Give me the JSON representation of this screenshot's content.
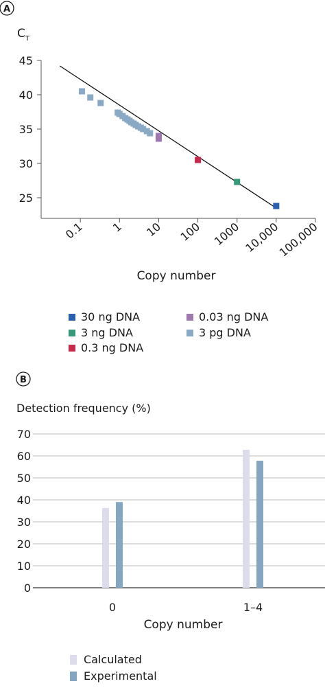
{
  "panels": {
    "a_label": "A",
    "b_label": "B"
  },
  "chart_data": [
    {
      "type": "scatter",
      "title": "",
      "ylabel_main": "C",
      "ylabel_sub": "T",
      "xlabel": "Copy number",
      "xscale": "log",
      "xlim": [
        0.01,
        100000
      ],
      "ylim": [
        22,
        45
      ],
      "yticks": [
        25,
        30,
        35,
        40,
        45
      ],
      "xticks": [
        {
          "value": 0.1,
          "label": "0.1"
        },
        {
          "value": 1,
          "label": "1"
        },
        {
          "value": 10,
          "label": "10"
        },
        {
          "value": 100,
          "label": "100"
        },
        {
          "value": 1000,
          "label": "1000"
        },
        {
          "value": 10000,
          "label": "10,000"
        },
        {
          "value": 100000,
          "label": "100,000"
        }
      ],
      "fit_line": {
        "x": [
          0.03,
          10000
        ],
        "y": [
          44.2,
          23.5
        ]
      },
      "series": [
        {
          "name": "30 ng DNA",
          "color": "#2a5fb0",
          "points": [
            {
              "x": 10000,
              "y": 23.8
            }
          ]
        },
        {
          "name": "3 ng DNA",
          "color": "#35997a",
          "points": [
            {
              "x": 1000,
              "y": 27.3
            }
          ]
        },
        {
          "name": "0.3 ng DNA",
          "color": "#c8284a",
          "points": [
            {
              "x": 100,
              "y": 30.5
            }
          ]
        },
        {
          "name": "0.03 ng DNA",
          "color": "#9e79b0",
          "points": [
            {
              "x": 10,
              "y": 34.0
            },
            {
              "x": 10,
              "y": 33.6
            }
          ]
        },
        {
          "name": "3 pg DNA",
          "color": "#8aa9c4",
          "points": [
            {
              "x": 0.11,
              "y": 40.5
            },
            {
              "x": 0.18,
              "y": 39.6
            },
            {
              "x": 0.33,
              "y": 38.8
            },
            {
              "x": 0.9,
              "y": 37.4
            },
            {
              "x": 1.0,
              "y": 37.2
            },
            {
              "x": 1.2,
              "y": 36.9
            },
            {
              "x": 1.4,
              "y": 36.6
            },
            {
              "x": 1.6,
              "y": 36.4
            },
            {
              "x": 1.8,
              "y": 36.2
            },
            {
              "x": 2.0,
              "y": 36.0
            },
            {
              "x": 2.3,
              "y": 35.8
            },
            {
              "x": 2.6,
              "y": 35.6
            },
            {
              "x": 3.0,
              "y": 35.4
            },
            {
              "x": 3.5,
              "y": 35.2
            },
            {
              "x": 4.0,
              "y": 35.0
            },
            {
              "x": 5.0,
              "y": 34.7
            },
            {
              "x": 6.0,
              "y": 34.4
            }
          ]
        }
      ],
      "legend": [
        {
          "label": "30 ng DNA",
          "color": "#2a5fb0"
        },
        {
          "label": "0.03 ng DNA",
          "color": "#9e79b0"
        },
        {
          "label": "3 ng DNA",
          "color": "#35997a"
        },
        {
          "label": "3 pg DNA",
          "color": "#8aa9c4"
        },
        {
          "label": "0.3 ng DNA",
          "color": "#c8284a"
        }
      ]
    },
    {
      "type": "bar",
      "title": "",
      "ylabel": "Detection frequency (%)",
      "xlabel": "Copy number",
      "categories": [
        "0",
        "1–4"
      ],
      "ylim": [
        0,
        70
      ],
      "yticks": [
        0,
        10,
        20,
        30,
        40,
        50,
        60,
        70
      ],
      "series": [
        {
          "name": "Calculated",
          "color": "#dcdcec",
          "values": [
            36.3,
            62.8
          ]
        },
        {
          "name": "Experimental",
          "color": "#84a6c0",
          "values": [
            39.0,
            57.8
          ]
        }
      ]
    }
  ]
}
